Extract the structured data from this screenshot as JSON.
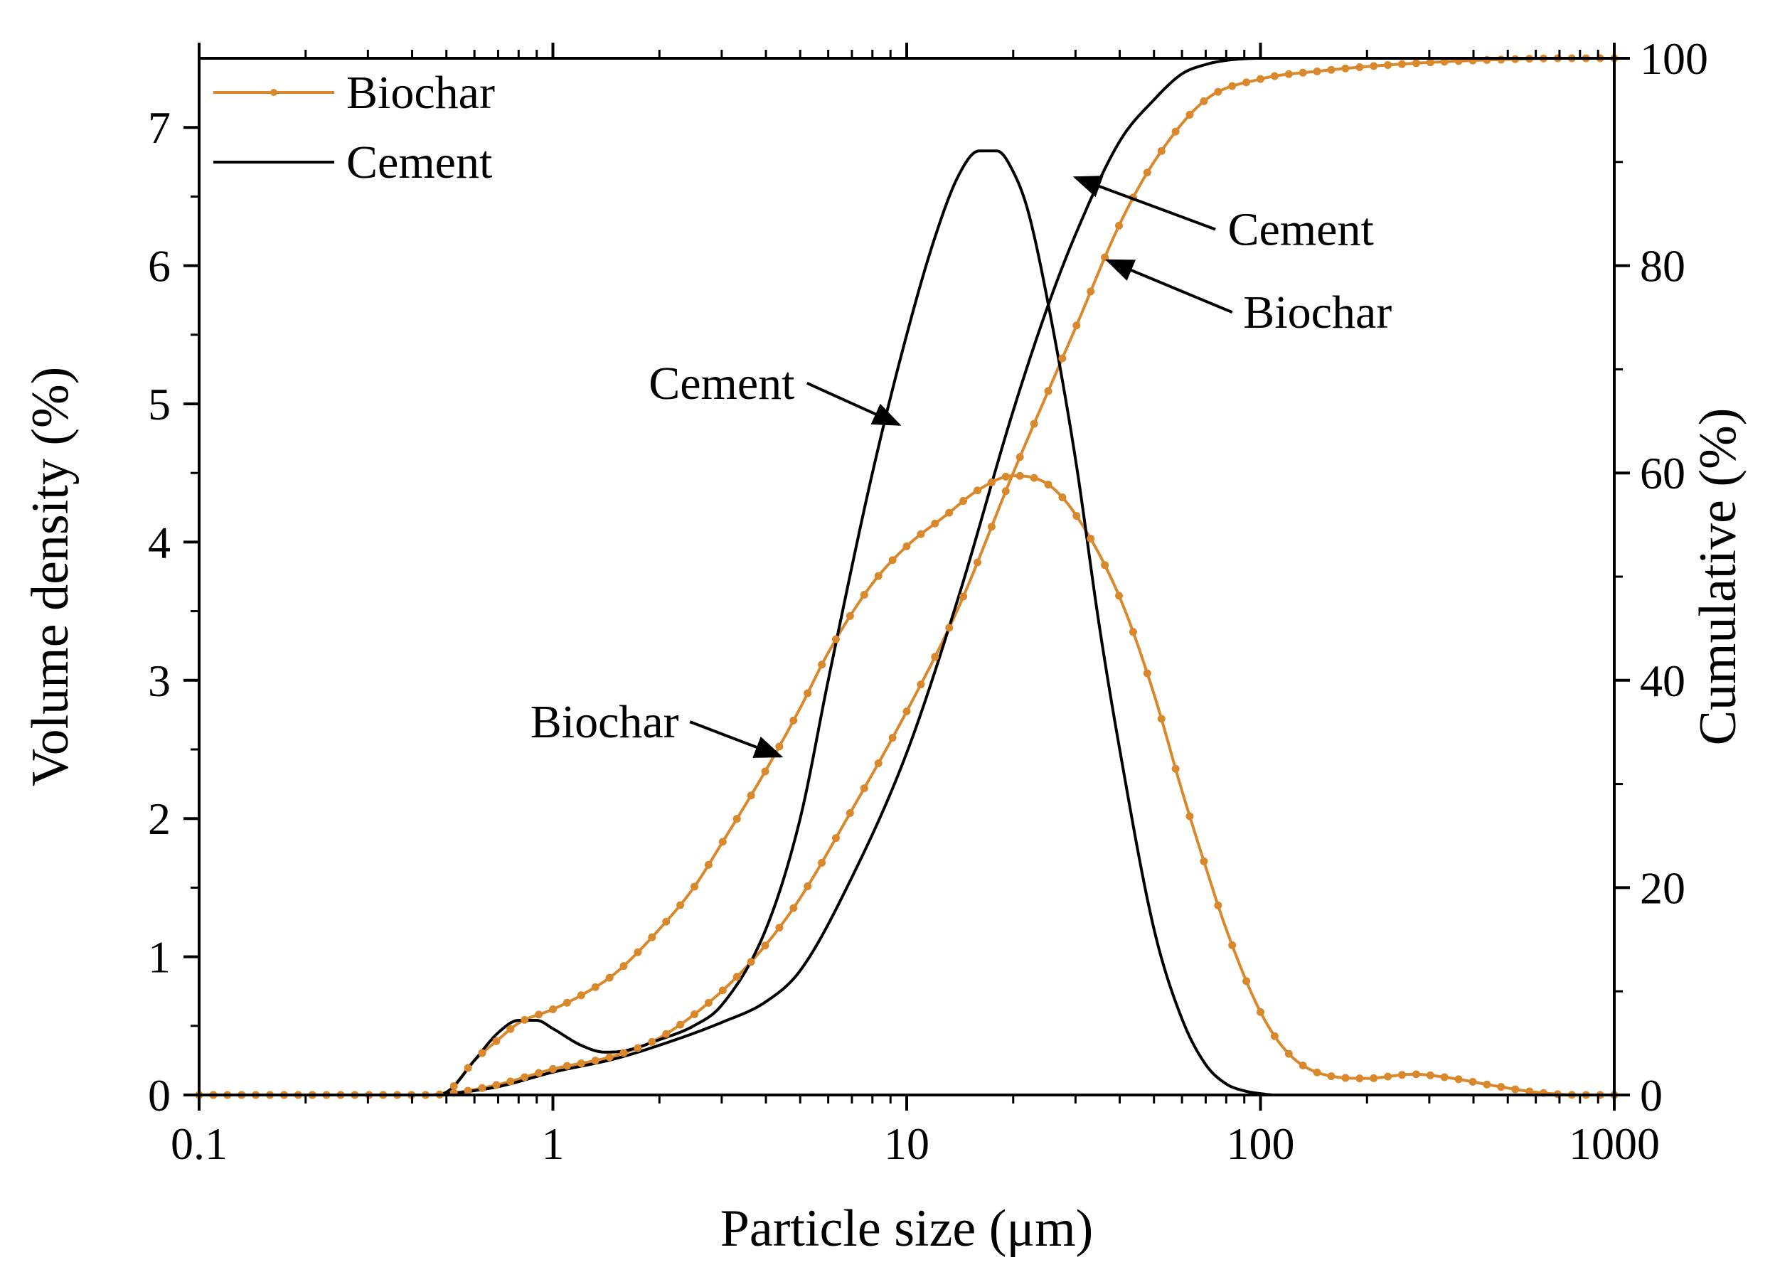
{
  "chart_data": {
    "type": "line",
    "xscale": "log",
    "xlabel": "Particle size (μm)",
    "ylabel_left": "Volume density (%)",
    "ylabel_right": "Cumulative (%)",
    "xlim": [
      0.1,
      1000
    ],
    "ylim_left": [
      0,
      7.5
    ],
    "ylim_right": [
      0,
      100
    ],
    "x_ticks": [
      {
        "value": 0.1,
        "label": "0.1"
      },
      {
        "value": 1,
        "label": "1"
      },
      {
        "value": 10,
        "label": "10"
      },
      {
        "value": 100,
        "label": "100"
      },
      {
        "value": 1000,
        "label": "1000"
      }
    ],
    "y_left_ticks": [
      {
        "value": 0,
        "label": "0"
      },
      {
        "value": 1,
        "label": "1"
      },
      {
        "value": 2,
        "label": "2"
      },
      {
        "value": 3,
        "label": "3"
      },
      {
        "value": 4,
        "label": "4"
      },
      {
        "value": 5,
        "label": "5"
      },
      {
        "value": 6,
        "label": "6"
      },
      {
        "value": 7,
        "label": "7"
      }
    ],
    "y_right_ticks": [
      {
        "value": 0,
        "label": "0"
      },
      {
        "value": 20,
        "label": "20"
      },
      {
        "value": 40,
        "label": "40"
      },
      {
        "value": 60,
        "label": "60"
      },
      {
        "value": 80,
        "label": "80"
      },
      {
        "value": 100,
        "label": "100"
      }
    ],
    "legend": {
      "position": "top-left",
      "entries": [
        {
          "label": "Biochar",
          "color": "#D9882C",
          "marker": "dot"
        },
        {
          "label": "Cement",
          "color": "#000000",
          "marker": "none"
        }
      ]
    },
    "series": [
      {
        "name": "Biochar",
        "kind": "density",
        "axis": "left",
        "color": "#D9882C",
        "marker": "dot",
        "x": [
          0.1,
          0.45,
          0.5,
          0.6,
          0.7,
          0.8,
          1.0,
          1.2,
          1.5,
          2.0,
          2.5,
          3.0,
          4.0,
          5.0,
          6.0,
          8.0,
          10,
          13,
          16,
          20,
          25,
          30,
          40,
          50,
          60,
          70,
          80,
          100,
          120,
          150,
          200,
          270,
          350,
          450,
          600,
          800,
          1000
        ],
        "values": [
          0,
          0,
          0.02,
          0.25,
          0.4,
          0.52,
          0.62,
          0.72,
          0.88,
          1.2,
          1.5,
          1.82,
          2.35,
          2.8,
          3.2,
          3.7,
          3.97,
          4.2,
          4.38,
          4.48,
          4.42,
          4.2,
          3.6,
          2.9,
          2.2,
          1.65,
          1.2,
          0.6,
          0.3,
          0.15,
          0.12,
          0.15,
          0.12,
          0.07,
          0.02,
          0,
          0
        ]
      },
      {
        "name": "Biochar",
        "kind": "cumulative",
        "axis": "right",
        "color": "#D9882C",
        "marker": "dot",
        "x": [
          0.1,
          0.45,
          0.5,
          0.7,
          1.0,
          1.5,
          2.0,
          3.0,
          4.0,
          5.0,
          7.0,
          10,
          14,
          20,
          30,
          40,
          50,
          70,
          100,
          150,
          200,
          300,
          500,
          700,
          1000
        ],
        "values": [
          0,
          0,
          0.1,
          1.0,
          2.5,
          3.8,
          5.5,
          10,
          14.5,
          19,
          27.5,
          37,
          47,
          60,
          74,
          84,
          90,
          96,
          98,
          98.8,
          99.2,
          99.6,
          99.9,
          100,
          100
        ]
      },
      {
        "name": "Cement",
        "kind": "density",
        "axis": "left",
        "color": "#000000",
        "marker": "none",
        "x": [
          0.1,
          0.45,
          0.5,
          0.6,
          0.7,
          0.8,
          0.9,
          1.0,
          1.2,
          1.4,
          1.6,
          2.0,
          2.5,
          3.0,
          4.0,
          5.0,
          6.0,
          8.0,
          10,
          12,
          14,
          16,
          18,
          20,
          22,
          25,
          30,
          35,
          40,
          50,
          60,
          70,
          80,
          90,
          100,
          110,
          120,
          150,
          300,
          1000
        ],
        "values": [
          0,
          0,
          0.02,
          0.25,
          0.45,
          0.54,
          0.54,
          0.48,
          0.36,
          0.31,
          0.32,
          0.4,
          0.5,
          0.65,
          1.2,
          2.0,
          3.0,
          4.5,
          5.5,
          6.2,
          6.65,
          6.83,
          6.83,
          6.68,
          6.4,
          5.75,
          4.6,
          3.4,
          2.5,
          1.2,
          0.55,
          0.22,
          0.08,
          0.03,
          0.01,
          0,
          0,
          0,
          0,
          0
        ]
      },
      {
        "name": "Cement",
        "kind": "cumulative",
        "axis": "right",
        "color": "#000000",
        "marker": "none",
        "x": [
          0.1,
          0.45,
          0.5,
          0.7,
          1.0,
          1.5,
          2.0,
          3.0,
          4.0,
          5.0,
          7.0,
          10,
          14,
          20,
          25,
          30,
          40,
          50,
          60,
          70,
          80,
          100,
          1000
        ],
        "values": [
          0,
          0,
          0.1,
          0.8,
          2.2,
          3.5,
          4.8,
          7,
          9,
          12,
          21,
          33,
          48,
          66,
          76,
          83,
          92,
          96,
          98.5,
          99.4,
          99.8,
          100,
          100
        ]
      }
    ],
    "annotations": [
      {
        "text": "Cement",
        "points_to": {
          "series": "Cement",
          "kind": "density",
          "x": 9.5,
          "y": 4.85
        },
        "text_at": {
          "x": 3.0,
          "y": 5.15
        }
      },
      {
        "text": "Biochar",
        "points_to": {
          "series": "Biochar",
          "kind": "density",
          "x": 4.4,
          "y": 2.45
        },
        "text_at": {
          "x": 1.4,
          "y": 2.7
        }
      },
      {
        "text": "Cement",
        "points_to": {
          "series": "Cement",
          "kind": "cumulative",
          "x": 30,
          "y": 88.5
        },
        "text_at": {
          "x": 130,
          "y": 83.5
        }
      },
      {
        "text": "Biochar",
        "points_to": {
          "series": "Biochar",
          "kind": "cumulative",
          "x": 37,
          "y": 80.5
        },
        "text_at": {
          "x": 145,
          "y": 75.5
        }
      }
    ]
  }
}
